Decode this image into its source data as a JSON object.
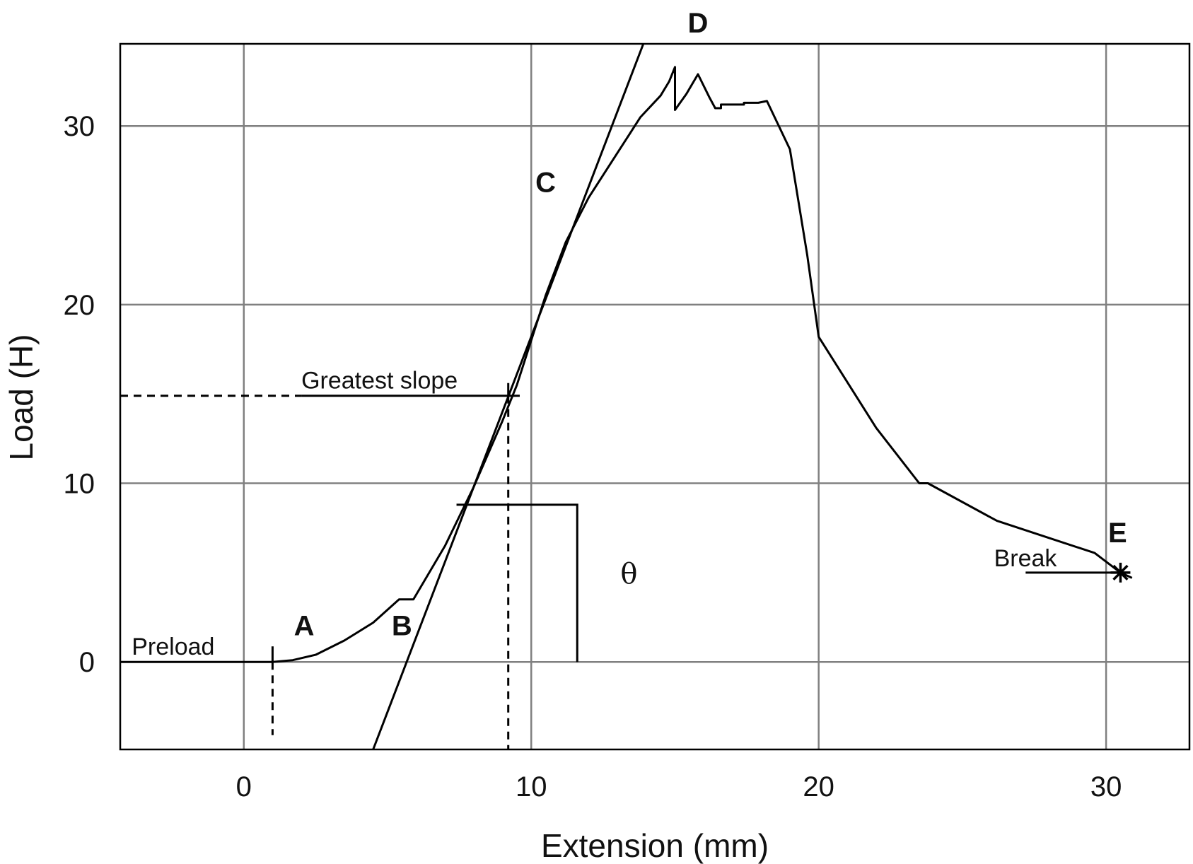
{
  "chart_data": {
    "type": "line",
    "xlabel": "Extension (mm)",
    "ylabel": "Load (H)",
    "xlim": [
      -4.3,
      32.9
    ],
    "ylim": [
      -4.9,
      34.6
    ],
    "x_ticks": [
      0,
      10,
      20,
      30
    ],
    "y_ticks": [
      0,
      10,
      20,
      30
    ],
    "x_tick_labels": [
      "0",
      "10",
      "20",
      "30"
    ],
    "y_tick_labels": [
      "0",
      "10",
      "20",
      "30"
    ],
    "grid": true,
    "series": [
      {
        "values": [
          [
            -4.3,
            0
          ],
          [
            1.0,
            0
          ],
          [
            1.7,
            0.1
          ],
          [
            2.5,
            0.4
          ],
          [
            3.5,
            1.2
          ],
          [
            4.5,
            2.2
          ],
          [
            5.4,
            3.5
          ],
          [
            5.9,
            3.5
          ],
          [
            7.0,
            6.5
          ],
          [
            8.0,
            9.8
          ],
          [
            9.0,
            13.5
          ],
          [
            9.5,
            15.5
          ],
          [
            10.5,
            20.5
          ],
          [
            11.2,
            23.5
          ],
          [
            12.0,
            26.0
          ],
          [
            13.0,
            28.5
          ],
          [
            13.8,
            30.5
          ],
          [
            14.5,
            31.7
          ],
          [
            14.8,
            32.5
          ],
          [
            15.0,
            33.3
          ],
          [
            15.0,
            30.9
          ],
          [
            15.4,
            31.8
          ],
          [
            15.8,
            32.9
          ],
          [
            16.2,
            31.6
          ],
          [
            16.4,
            31.0
          ],
          [
            16.6,
            31.0
          ],
          [
            16.6,
            31.2
          ],
          [
            17.4,
            31.2
          ],
          [
            17.4,
            31.3
          ],
          [
            17.9,
            31.3
          ],
          [
            18.2,
            31.4
          ],
          [
            19.0,
            28.7
          ],
          [
            19.6,
            22.8
          ],
          [
            20.0,
            18.2
          ],
          [
            22.0,
            13.1
          ],
          [
            23.5,
            10.0
          ],
          [
            23.8,
            10.0
          ],
          [
            26.2,
            7.9
          ],
          [
            29.6,
            6.1
          ],
          [
            30.5,
            5.0
          ],
          [
            30.9,
            4.7
          ]
        ]
      }
    ],
    "tangent_line": [
      [
        4.5,
        -4.9
      ],
      [
        13.9,
        34.6
      ]
    ],
    "greatest_slope_point": [
      9.2,
      14.9
    ],
    "break_point": [
      30.5,
      5.0
    ],
    "theta_bracket": {
      "x0": 7.4,
      "x1": 11.6,
      "y_top": 8.8,
      "y_bottom": 0
    },
    "preload_marker_x": 1.0,
    "annotations": {
      "preload": "Preload",
      "greatest_slope": "Greatest slope",
      "break": "Break",
      "theta": "θ",
      "A": "A",
      "B": "B",
      "C": "C",
      "D": "D",
      "E": "E"
    }
  }
}
